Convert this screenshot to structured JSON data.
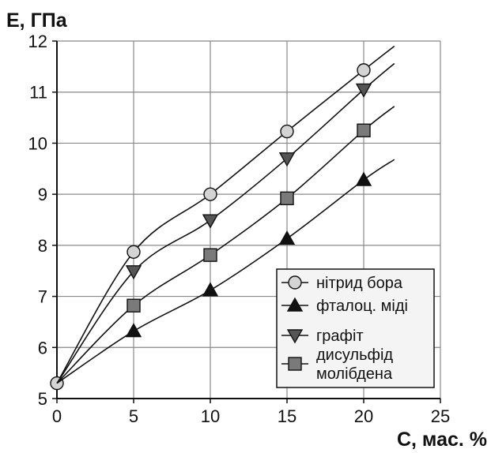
{
  "chart_data": {
    "type": "line",
    "title": "",
    "xlabel": "C, мас. %",
    "ylabel": "E, ГПа",
    "xlim": [
      0,
      25
    ],
    "ylim": [
      5,
      12
    ],
    "xticks": [
      0,
      5,
      10,
      15,
      20,
      25
    ],
    "yticks": [
      5,
      6,
      7,
      8,
      9,
      10,
      11,
      12
    ],
    "grid": true,
    "legend_position": "bottom-right",
    "x": [
      0,
      5,
      10,
      15,
      20
    ],
    "series": [
      {
        "name": "нітрид бора",
        "marker": "circle",
        "marker_color": "#d4d4d4",
        "values": [
          5.3,
          7.87,
          9.0,
          10.23,
          11.43
        ],
        "trend_end": [
          22,
          11.9
        ]
      },
      {
        "name": "фталоц. міді",
        "marker": "triangle-up",
        "marker_color": "#111111",
        "values": [
          5.3,
          6.32,
          7.12,
          8.13,
          9.28
        ],
        "trend_end": [
          22,
          9.68
        ]
      },
      {
        "name": "графіт",
        "marker": "triangle-down",
        "marker_color": "#555555",
        "values": [
          5.3,
          7.49,
          8.49,
          9.7,
          11.05
        ],
        "trend_end": [
          22,
          11.56
        ]
      },
      {
        "name": "дисульфід молібдена",
        "legend_lines": [
          "дисульфід",
          "молібдена"
        ],
        "marker": "square",
        "marker_color": "#7a7a7a",
        "values": [
          5.3,
          6.82,
          7.81,
          8.92,
          10.25
        ],
        "trend_end": [
          22,
          10.72
        ]
      }
    ]
  }
}
